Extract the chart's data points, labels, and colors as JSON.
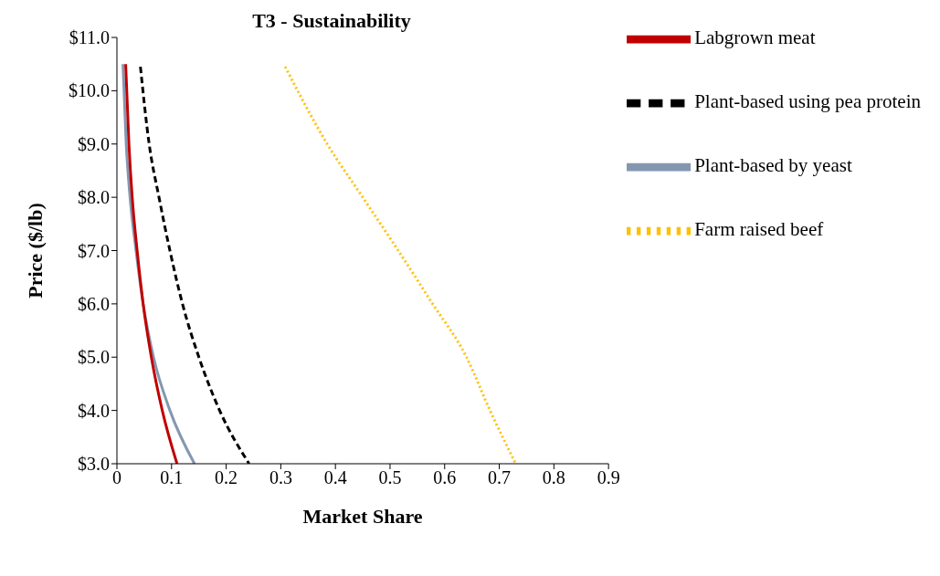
{
  "chart_data": {
    "type": "line",
    "title": "T3 - Sustainability",
    "xlabel": "Market Share",
    "ylabel": "Price ($/lb)",
    "xlim": [
      0,
      0.9
    ],
    "xticks": [
      0,
      0.1,
      0.2,
      0.3,
      0.4,
      0.5,
      0.6,
      0.7,
      0.8,
      0.9
    ],
    "ylim": [
      3,
      11
    ],
    "yticks": [
      {
        "value": 3,
        "label": "$3.0"
      },
      {
        "value": 4,
        "label": "$4.0"
      },
      {
        "value": 5,
        "label": "$5.0"
      },
      {
        "value": 6,
        "label": "$6.0"
      },
      {
        "value": 7,
        "label": "$7.0"
      },
      {
        "value": 8,
        "label": "$8.0"
      },
      {
        "value": 9,
        "label": "$9.0"
      },
      {
        "value": 10,
        "label": "$10.0"
      },
      {
        "value": 11,
        "label": "$11.0"
      }
    ],
    "grid": false,
    "legend": "top right",
    "marker": "none",
    "series": [
      {
        "name": "Labgrown meat",
        "color": "#c00000",
        "line_style": "solid",
        "x": [
          0.016,
          0.022,
          0.028,
          0.037,
          0.048,
          0.063,
          0.083,
          0.11
        ],
        "values": [
          10.5,
          9,
          8,
          7,
          6,
          5,
          4,
          3
        ]
      },
      {
        "name": "Plant-based using pea protein",
        "color": "#000000",
        "line_style": "dashed",
        "x": [
          0.043,
          0.059,
          0.077,
          0.097,
          0.12,
          0.15,
          0.188,
          0.242
        ],
        "values": [
          10.45,
          9,
          8,
          7,
          6,
          5,
          4,
          3
        ]
      },
      {
        "name": "Plant-based by yeast",
        "color": "#8497b0",
        "line_style": "solid",
        "x": [
          0.011,
          0.017,
          0.024,
          0.035,
          0.048,
          0.067,
          0.097,
          0.142
        ],
        "values": [
          10.5,
          9,
          8,
          7,
          6,
          5,
          4,
          3
        ]
      },
      {
        "name": "Farm raised beef",
        "color": "#ffc000",
        "line_style": "dotted",
        "x": [
          0.308,
          0.385,
          0.45,
          0.515,
          0.578,
          0.64,
          0.683,
          0.73
        ],
        "values": [
          10.45,
          9,
          8,
          7,
          6,
          5,
          4,
          3
        ]
      }
    ]
  }
}
